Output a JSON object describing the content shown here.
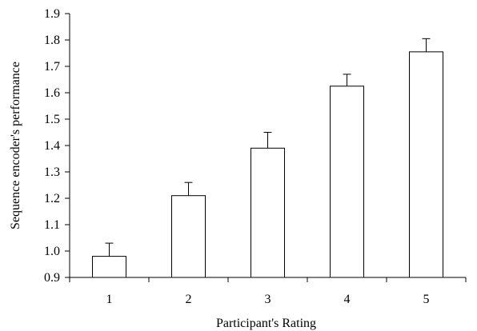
{
  "chart_data": {
    "type": "bar",
    "title": "",
    "xlabel": "Participant's Rating",
    "ylabel": "Sequence encoder's performance",
    "categories": [
      "1",
      "2",
      "3",
      "4",
      "5"
    ],
    "values": [
      0.98,
      1.21,
      1.39,
      1.625,
      1.755
    ],
    "error_upper": [
      0.05,
      0.05,
      0.06,
      0.045,
      0.05
    ],
    "ylim": [
      0.9,
      1.9
    ],
    "yticks": [
      0.9,
      1.0,
      1.1,
      1.2,
      1.3,
      1.4,
      1.5,
      1.6,
      1.7,
      1.8,
      1.9
    ],
    "ytick_labels": [
      "0.9",
      "1.0",
      "1.1",
      "1.2",
      "1.3",
      "1.4",
      "1.5",
      "1.6",
      "1.7",
      "1.8",
      "1.9"
    ],
    "grid": false,
    "bar_fill": "#ffffff",
    "bar_stroke": "#000000"
  }
}
